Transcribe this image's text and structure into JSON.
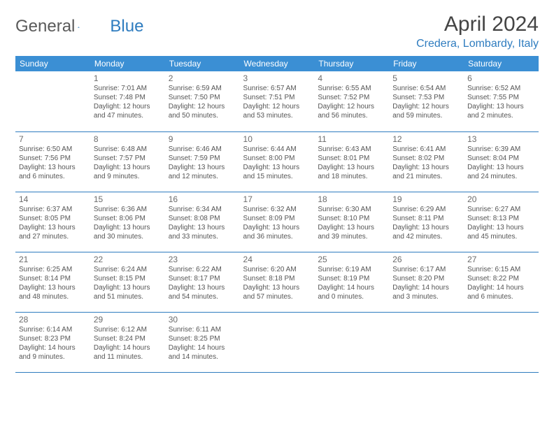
{
  "brand": {
    "part1": "General",
    "part2": "Blue"
  },
  "title": "April 2024",
  "location": "Credera, Lombardy, Italy",
  "header_color": "#3b8fd4",
  "accent_color": "#2e7cbf",
  "weekdays": [
    "Sunday",
    "Monday",
    "Tuesday",
    "Wednesday",
    "Thursday",
    "Friday",
    "Saturday"
  ],
  "weeks": [
    [
      null,
      {
        "n": "1",
        "sr": "7:01 AM",
        "ss": "7:48 PM",
        "dl": "12 hours and 47 minutes."
      },
      {
        "n": "2",
        "sr": "6:59 AM",
        "ss": "7:50 PM",
        "dl": "12 hours and 50 minutes."
      },
      {
        "n": "3",
        "sr": "6:57 AM",
        "ss": "7:51 PM",
        "dl": "12 hours and 53 minutes."
      },
      {
        "n": "4",
        "sr": "6:55 AM",
        "ss": "7:52 PM",
        "dl": "12 hours and 56 minutes."
      },
      {
        "n": "5",
        "sr": "6:54 AM",
        "ss": "7:53 PM",
        "dl": "12 hours and 59 minutes."
      },
      {
        "n": "6",
        "sr": "6:52 AM",
        "ss": "7:55 PM",
        "dl": "13 hours and 2 minutes."
      }
    ],
    [
      {
        "n": "7",
        "sr": "6:50 AM",
        "ss": "7:56 PM",
        "dl": "13 hours and 6 minutes."
      },
      {
        "n": "8",
        "sr": "6:48 AM",
        "ss": "7:57 PM",
        "dl": "13 hours and 9 minutes."
      },
      {
        "n": "9",
        "sr": "6:46 AM",
        "ss": "7:59 PM",
        "dl": "13 hours and 12 minutes."
      },
      {
        "n": "10",
        "sr": "6:44 AM",
        "ss": "8:00 PM",
        "dl": "13 hours and 15 minutes."
      },
      {
        "n": "11",
        "sr": "6:43 AM",
        "ss": "8:01 PM",
        "dl": "13 hours and 18 minutes."
      },
      {
        "n": "12",
        "sr": "6:41 AM",
        "ss": "8:02 PM",
        "dl": "13 hours and 21 minutes."
      },
      {
        "n": "13",
        "sr": "6:39 AM",
        "ss": "8:04 PM",
        "dl": "13 hours and 24 minutes."
      }
    ],
    [
      {
        "n": "14",
        "sr": "6:37 AM",
        "ss": "8:05 PM",
        "dl": "13 hours and 27 minutes."
      },
      {
        "n": "15",
        "sr": "6:36 AM",
        "ss": "8:06 PM",
        "dl": "13 hours and 30 minutes."
      },
      {
        "n": "16",
        "sr": "6:34 AM",
        "ss": "8:08 PM",
        "dl": "13 hours and 33 minutes."
      },
      {
        "n": "17",
        "sr": "6:32 AM",
        "ss": "8:09 PM",
        "dl": "13 hours and 36 minutes."
      },
      {
        "n": "18",
        "sr": "6:30 AM",
        "ss": "8:10 PM",
        "dl": "13 hours and 39 minutes."
      },
      {
        "n": "19",
        "sr": "6:29 AM",
        "ss": "8:11 PM",
        "dl": "13 hours and 42 minutes."
      },
      {
        "n": "20",
        "sr": "6:27 AM",
        "ss": "8:13 PM",
        "dl": "13 hours and 45 minutes."
      }
    ],
    [
      {
        "n": "21",
        "sr": "6:25 AM",
        "ss": "8:14 PM",
        "dl": "13 hours and 48 minutes."
      },
      {
        "n": "22",
        "sr": "6:24 AM",
        "ss": "8:15 PM",
        "dl": "13 hours and 51 minutes."
      },
      {
        "n": "23",
        "sr": "6:22 AM",
        "ss": "8:17 PM",
        "dl": "13 hours and 54 minutes."
      },
      {
        "n": "24",
        "sr": "6:20 AM",
        "ss": "8:18 PM",
        "dl": "13 hours and 57 minutes."
      },
      {
        "n": "25",
        "sr": "6:19 AM",
        "ss": "8:19 PM",
        "dl": "14 hours and 0 minutes."
      },
      {
        "n": "26",
        "sr": "6:17 AM",
        "ss": "8:20 PM",
        "dl": "14 hours and 3 minutes."
      },
      {
        "n": "27",
        "sr": "6:15 AM",
        "ss": "8:22 PM",
        "dl": "14 hours and 6 minutes."
      }
    ],
    [
      {
        "n": "28",
        "sr": "6:14 AM",
        "ss": "8:23 PM",
        "dl": "14 hours and 9 minutes."
      },
      {
        "n": "29",
        "sr": "6:12 AM",
        "ss": "8:24 PM",
        "dl": "14 hours and 11 minutes."
      },
      {
        "n": "30",
        "sr": "6:11 AM",
        "ss": "8:25 PM",
        "dl": "14 hours and 14 minutes."
      },
      null,
      null,
      null,
      null
    ]
  ],
  "labels": {
    "sunrise": "Sunrise:",
    "sunset": "Sunset:",
    "daylight": "Daylight:"
  }
}
